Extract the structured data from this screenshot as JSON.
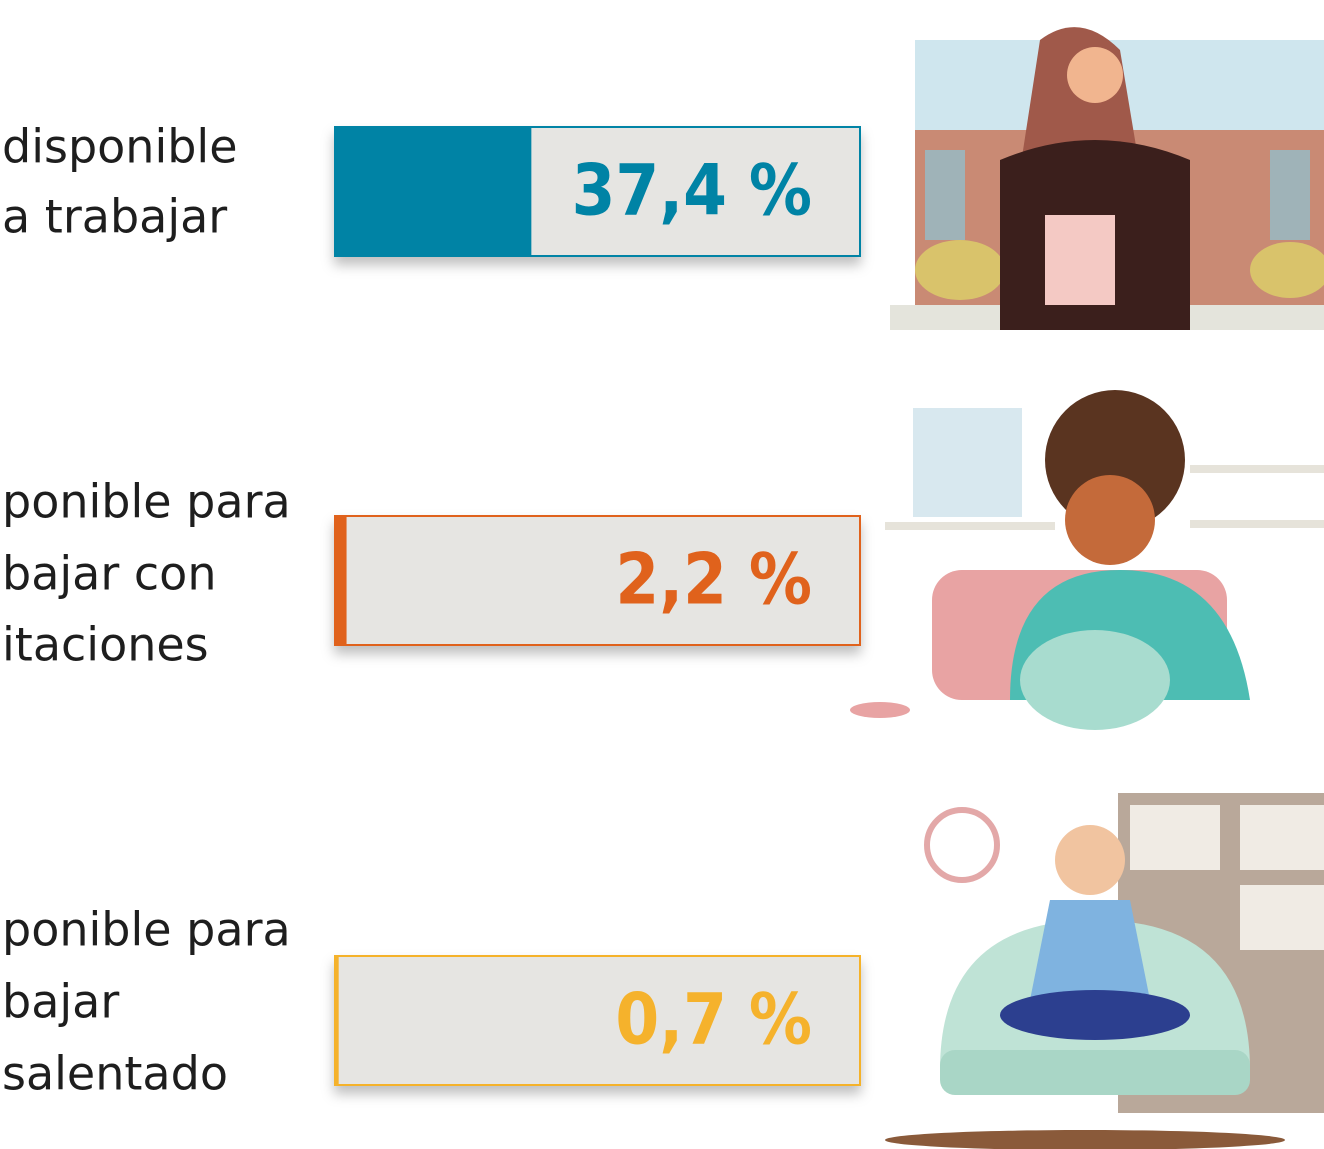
{
  "chart_data": {
    "type": "bar",
    "categories": [
      [
        "disponible",
        "a trabajar"
      ],
      [
        "ponible para",
        "bajar con",
        "itaciones"
      ],
      [
        "ponible para",
        "bajar",
        "salentado"
      ]
    ],
    "values": [
      37.4,
      2.2,
      0.7
    ],
    "value_labels": [
      "37,4 %",
      "2,2 %",
      "0,7 %"
    ],
    "colors": [
      "#0083a5",
      "#e0621c",
      "#f5b22c"
    ],
    "xlim": [
      0,
      100
    ]
  }
}
